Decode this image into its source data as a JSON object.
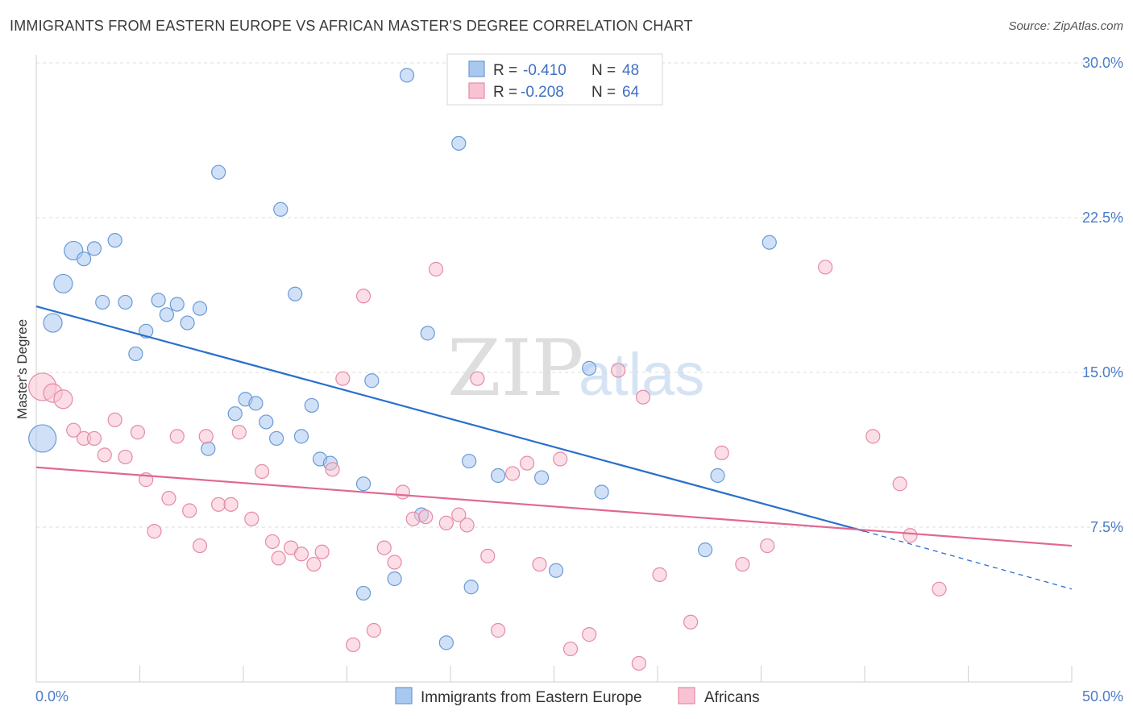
{
  "title": "IMMIGRANTS FROM EASTERN EUROPE VS AFRICAN MASTER'S DEGREE CORRELATION CHART",
  "source": "Source: ZipAtlas.com",
  "watermark": {
    "part1": "ZIP",
    "part2": "atlas"
  },
  "legend_top": {
    "rows": [
      {
        "r_label": "R =",
        "r_value": "-0.410",
        "n_label": "N =",
        "n_value": "48",
        "color": "#a9c8f0",
        "stroke": "#6a9ad6"
      },
      {
        "r_label": "R =",
        "r_value": "-0.208",
        "n_label": "N =",
        "n_value": "64",
        "color": "#f8c2d2",
        "stroke": "#e58aa8"
      }
    ]
  },
  "legend_bottom": [
    {
      "label": "Immigrants from Eastern Europe",
      "color": "#a9c8f0",
      "stroke": "#6a9ad6"
    },
    {
      "label": "Africans",
      "color": "#f8c2d2",
      "stroke": "#e58aa8"
    }
  ],
  "chart_data": {
    "type": "scatter",
    "title": "IMMIGRANTS FROM EASTERN EUROPE VS AFRICAN MASTER'S DEGREE CORRELATION CHART",
    "xlabel": "",
    "ylabel": "Master's Degree",
    "xlim": [
      0,
      50
    ],
    "ylim": [
      0,
      30
    ],
    "x_tick_labels": [
      "0.0%",
      "50.0%"
    ],
    "y_ticks": [
      7.5,
      15.0,
      22.5,
      30.0
    ],
    "y_tick_labels": [
      "7.5%",
      "15.0%",
      "22.5%",
      "30.0%"
    ],
    "grid": true,
    "legend_placement": "top-center",
    "series": [
      {
        "name": "Immigrants from Eastern Europe",
        "color": "#a9c8f0",
        "stroke": "#6a9ad6",
        "line_color": "#2b6fce",
        "trend": {
          "x0": 0,
          "y0": 18.2,
          "x1": 40,
          "y1": 7.3,
          "dash_to_x": 50,
          "dash_to_y": 4.5
        },
        "points": [
          {
            "x": 0.3,
            "y": 11.8,
            "s": 3
          },
          {
            "x": 0.8,
            "y": 17.4,
            "s": 2
          },
          {
            "x": 1.3,
            "y": 19.3,
            "s": 2
          },
          {
            "x": 1.8,
            "y": 20.9,
            "s": 2
          },
          {
            "x": 2.3,
            "y": 20.5,
            "s": 1
          },
          {
            "x": 2.8,
            "y": 21.0,
            "s": 1
          },
          {
            "x": 3.2,
            "y": 18.4,
            "s": 1
          },
          {
            "x": 3.8,
            "y": 21.4,
            "s": 1
          },
          {
            "x": 4.3,
            "y": 18.4,
            "s": 1
          },
          {
            "x": 4.8,
            "y": 15.9,
            "s": 1
          },
          {
            "x": 5.3,
            "y": 17.0,
            "s": 1
          },
          {
            "x": 5.9,
            "y": 18.5,
            "s": 1
          },
          {
            "x": 6.3,
            "y": 17.8,
            "s": 1
          },
          {
            "x": 6.8,
            "y": 18.3,
            "s": 1
          },
          {
            "x": 7.3,
            "y": 17.4,
            "s": 1
          },
          {
            "x": 7.9,
            "y": 18.1,
            "s": 1
          },
          {
            "x": 8.8,
            "y": 24.7,
            "s": 1
          },
          {
            "x": 8.3,
            "y": 11.3,
            "s": 1
          },
          {
            "x": 9.6,
            "y": 13.0,
            "s": 1
          },
          {
            "x": 10.1,
            "y": 13.7,
            "s": 1
          },
          {
            "x": 10.6,
            "y": 13.5,
            "s": 1
          },
          {
            "x": 11.1,
            "y": 12.6,
            "s": 1
          },
          {
            "x": 11.6,
            "y": 11.8,
            "s": 1
          },
          {
            "x": 11.8,
            "y": 22.9,
            "s": 1
          },
          {
            "x": 12.5,
            "y": 18.8,
            "s": 1
          },
          {
            "x": 12.8,
            "y": 11.9,
            "s": 1
          },
          {
            "x": 13.3,
            "y": 13.4,
            "s": 1
          },
          {
            "x": 13.7,
            "y": 10.8,
            "s": 1
          },
          {
            "x": 14.2,
            "y": 10.6,
            "s": 1
          },
          {
            "x": 15.8,
            "y": 4.3,
            "s": 1
          },
          {
            "x": 15.8,
            "y": 9.6,
            "s": 1
          },
          {
            "x": 16.2,
            "y": 14.6,
            "s": 1
          },
          {
            "x": 17.3,
            "y": 5.0,
            "s": 1
          },
          {
            "x": 17.9,
            "y": 29.4,
            "s": 1
          },
          {
            "x": 18.6,
            "y": 8.1,
            "s": 1
          },
          {
            "x": 18.9,
            "y": 16.9,
            "s": 1
          },
          {
            "x": 19.8,
            "y": 1.9,
            "s": 1
          },
          {
            "x": 20.4,
            "y": 26.1,
            "s": 1
          },
          {
            "x": 20.9,
            "y": 10.7,
            "s": 1
          },
          {
            "x": 21.0,
            "y": 4.6,
            "s": 1
          },
          {
            "x": 22.3,
            "y": 10.0,
            "s": 1
          },
          {
            "x": 24.4,
            "y": 9.9,
            "s": 1
          },
          {
            "x": 25.1,
            "y": 5.4,
            "s": 1
          },
          {
            "x": 26.7,
            "y": 15.2,
            "s": 1
          },
          {
            "x": 27.3,
            "y": 9.2,
            "s": 1
          },
          {
            "x": 32.3,
            "y": 6.4,
            "s": 1
          },
          {
            "x": 32.9,
            "y": 10.0,
            "s": 1
          },
          {
            "x": 35.4,
            "y": 21.3,
            "s": 1
          }
        ]
      },
      {
        "name": "Africans",
        "color": "#f8c2d2",
        "stroke": "#e58aa8",
        "line_color": "#e06892",
        "trend": {
          "x0": 0,
          "y0": 10.4,
          "x1": 50,
          "y1": 6.6
        },
        "points": [
          {
            "x": 0.3,
            "y": 14.3,
            "s": 3
          },
          {
            "x": 0.8,
            "y": 14.0,
            "s": 2
          },
          {
            "x": 1.3,
            "y": 13.7,
            "s": 2
          },
          {
            "x": 1.8,
            "y": 12.2,
            "s": 1
          },
          {
            "x": 2.3,
            "y": 11.8,
            "s": 1
          },
          {
            "x": 2.8,
            "y": 11.8,
            "s": 1
          },
          {
            "x": 3.3,
            "y": 11.0,
            "s": 1
          },
          {
            "x": 3.8,
            "y": 12.7,
            "s": 1
          },
          {
            "x": 4.3,
            "y": 10.9,
            "s": 1
          },
          {
            "x": 4.9,
            "y": 12.1,
            "s": 1
          },
          {
            "x": 5.3,
            "y": 9.8,
            "s": 1
          },
          {
            "x": 5.7,
            "y": 7.3,
            "s": 1
          },
          {
            "x": 6.4,
            "y": 8.9,
            "s": 1
          },
          {
            "x": 6.8,
            "y": 11.9,
            "s": 1
          },
          {
            "x": 7.4,
            "y": 8.3,
            "s": 1
          },
          {
            "x": 7.9,
            "y": 6.6,
            "s": 1
          },
          {
            "x": 8.2,
            "y": 11.9,
            "s": 1
          },
          {
            "x": 8.8,
            "y": 8.6,
            "s": 1
          },
          {
            "x": 9.4,
            "y": 8.6,
            "s": 1
          },
          {
            "x": 9.8,
            "y": 12.1,
            "s": 1
          },
          {
            "x": 10.4,
            "y": 7.9,
            "s": 1
          },
          {
            "x": 10.9,
            "y": 10.2,
            "s": 1
          },
          {
            "x": 11.4,
            "y": 6.8,
            "s": 1
          },
          {
            "x": 11.7,
            "y": 6.0,
            "s": 1
          },
          {
            "x": 12.3,
            "y": 6.5,
            "s": 1
          },
          {
            "x": 12.8,
            "y": 6.2,
            "s": 1
          },
          {
            "x": 13.4,
            "y": 5.7,
            "s": 1
          },
          {
            "x": 13.8,
            "y": 6.3,
            "s": 1
          },
          {
            "x": 14.3,
            "y": 10.3,
            "s": 1
          },
          {
            "x": 14.8,
            "y": 14.7,
            "s": 1
          },
          {
            "x": 15.3,
            "y": 1.8,
            "s": 1
          },
          {
            "x": 15.8,
            "y": 18.7,
            "s": 1
          },
          {
            "x": 16.3,
            "y": 2.5,
            "s": 1
          },
          {
            "x": 16.8,
            "y": 6.5,
            "s": 1
          },
          {
            "x": 17.3,
            "y": 5.8,
            "s": 1
          },
          {
            "x": 17.7,
            "y": 9.2,
            "s": 1
          },
          {
            "x": 18.2,
            "y": 7.9,
            "s": 1
          },
          {
            "x": 18.8,
            "y": 8.0,
            "s": 1
          },
          {
            "x": 19.3,
            "y": 20.0,
            "s": 1
          },
          {
            "x": 19.8,
            "y": 7.7,
            "s": 1
          },
          {
            "x": 20.4,
            "y": 8.1,
            "s": 1
          },
          {
            "x": 20.8,
            "y": 7.6,
            "s": 1
          },
          {
            "x": 21.3,
            "y": 14.7,
            "s": 1
          },
          {
            "x": 21.8,
            "y": 6.1,
            "s": 1
          },
          {
            "x": 22.3,
            "y": 2.5,
            "s": 1
          },
          {
            "x": 23.0,
            "y": 10.1,
            "s": 1
          },
          {
            "x": 23.7,
            "y": 10.6,
            "s": 1
          },
          {
            "x": 24.3,
            "y": 5.7,
            "s": 1
          },
          {
            "x": 25.3,
            "y": 10.8,
            "s": 1
          },
          {
            "x": 25.8,
            "y": 1.6,
            "s": 1
          },
          {
            "x": 26.7,
            "y": 2.3,
            "s": 1
          },
          {
            "x": 28.1,
            "y": 15.1,
            "s": 1
          },
          {
            "x": 29.1,
            "y": 0.9,
            "s": 1
          },
          {
            "x": 29.3,
            "y": 13.8,
            "s": 1
          },
          {
            "x": 30.1,
            "y": 5.2,
            "s": 1
          },
          {
            "x": 31.6,
            "y": 2.9,
            "s": 1
          },
          {
            "x": 33.1,
            "y": 11.1,
            "s": 1
          },
          {
            "x": 34.1,
            "y": 5.7,
            "s": 1
          },
          {
            "x": 35.3,
            "y": 6.6,
            "s": 1
          },
          {
            "x": 38.1,
            "y": 20.1,
            "s": 1
          },
          {
            "x": 40.4,
            "y": 11.9,
            "s": 1
          },
          {
            "x": 41.7,
            "y": 9.6,
            "s": 1
          },
          {
            "x": 42.2,
            "y": 7.1,
            "s": 1
          },
          {
            "x": 43.6,
            "y": 4.5,
            "s": 1
          }
        ]
      }
    ]
  }
}
